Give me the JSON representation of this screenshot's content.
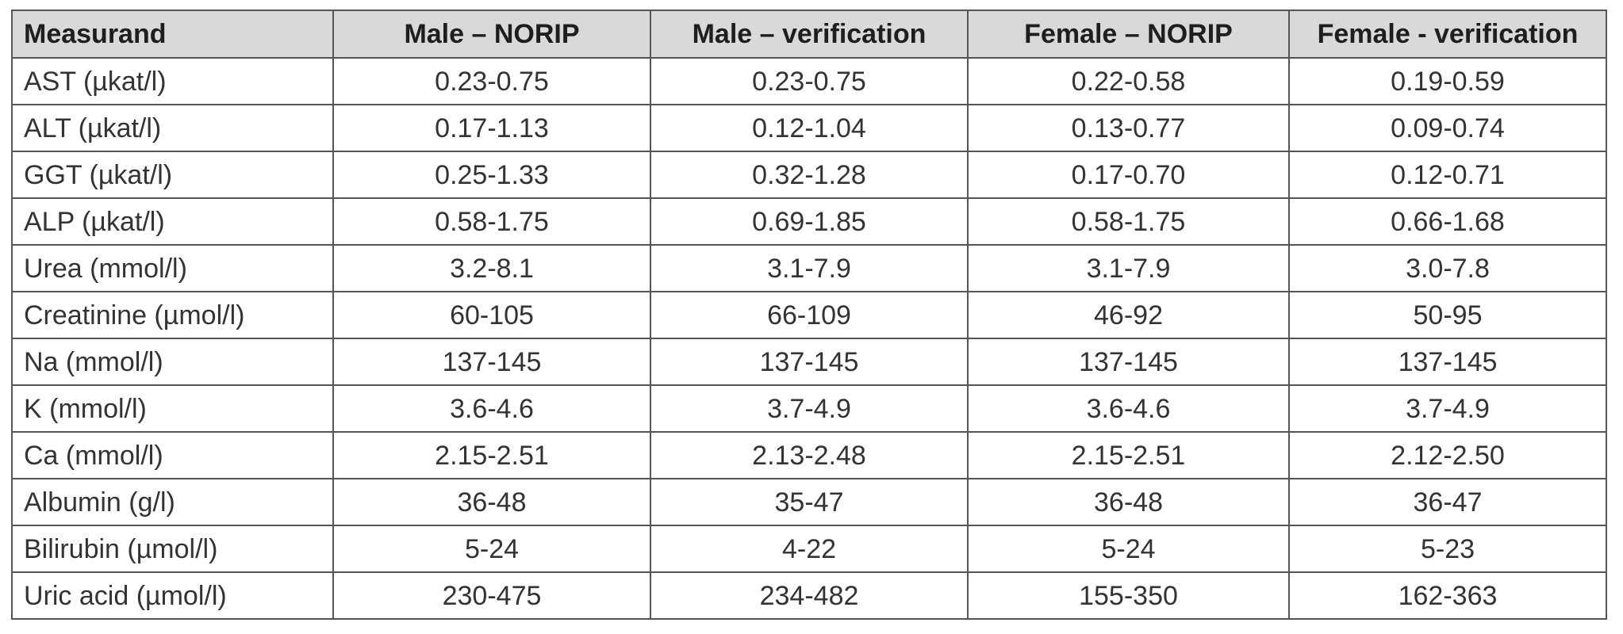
{
  "table": {
    "headers": [
      "Measurand",
      "Male – NORIP",
      "Male – verification",
      "Female – NORIP",
      "Female - verification"
    ],
    "rows": [
      [
        "AST (µkat/l)",
        "0.23-0.75",
        "0.23-0.75",
        "0.22-0.58",
        "0.19-0.59"
      ],
      [
        "ALT (µkat/l)",
        "0.17-1.13",
        "0.12-1.04",
        "0.13-0.77",
        "0.09-0.74"
      ],
      [
        "GGT (µkat/l)",
        "0.25-1.33",
        "0.32-1.28",
        "0.17-0.70",
        "0.12-0.71"
      ],
      [
        "ALP (µkat/l)",
        "0.58-1.75",
        "0.69-1.85",
        "0.58-1.75",
        "0.66-1.68"
      ],
      [
        "Urea (mmol/l)",
        "3.2-8.1",
        "3.1-7.9",
        "3.1-7.9",
        "3.0-7.8"
      ],
      [
        "Creatinine (µmol/l)",
        "60-105",
        "66-109",
        "46-92",
        "50-95"
      ],
      [
        "Na (mmol/l)",
        "137-145",
        "137-145",
        "137-145",
        "137-145"
      ],
      [
        "K (mmol/l)",
        "3.6-4.6",
        "3.7-4.9",
        "3.6-4.6",
        "3.7-4.9"
      ],
      [
        "Ca (mmol/l)",
        "2.15-2.51",
        "2.13-2.48",
        "2.15-2.51",
        "2.12-2.50"
      ],
      [
        "Albumin (g/l)",
        "36-48",
        "35-47",
        "36-48",
        "36-47"
      ],
      [
        "Bilirubin (µmol/l)",
        "5-24",
        "4-22",
        "5-24",
        "5-23"
      ],
      [
        "Uric acid (µmol/l)",
        "230-475",
        "234-482",
        "155-350",
        "162-363"
      ]
    ]
  }
}
